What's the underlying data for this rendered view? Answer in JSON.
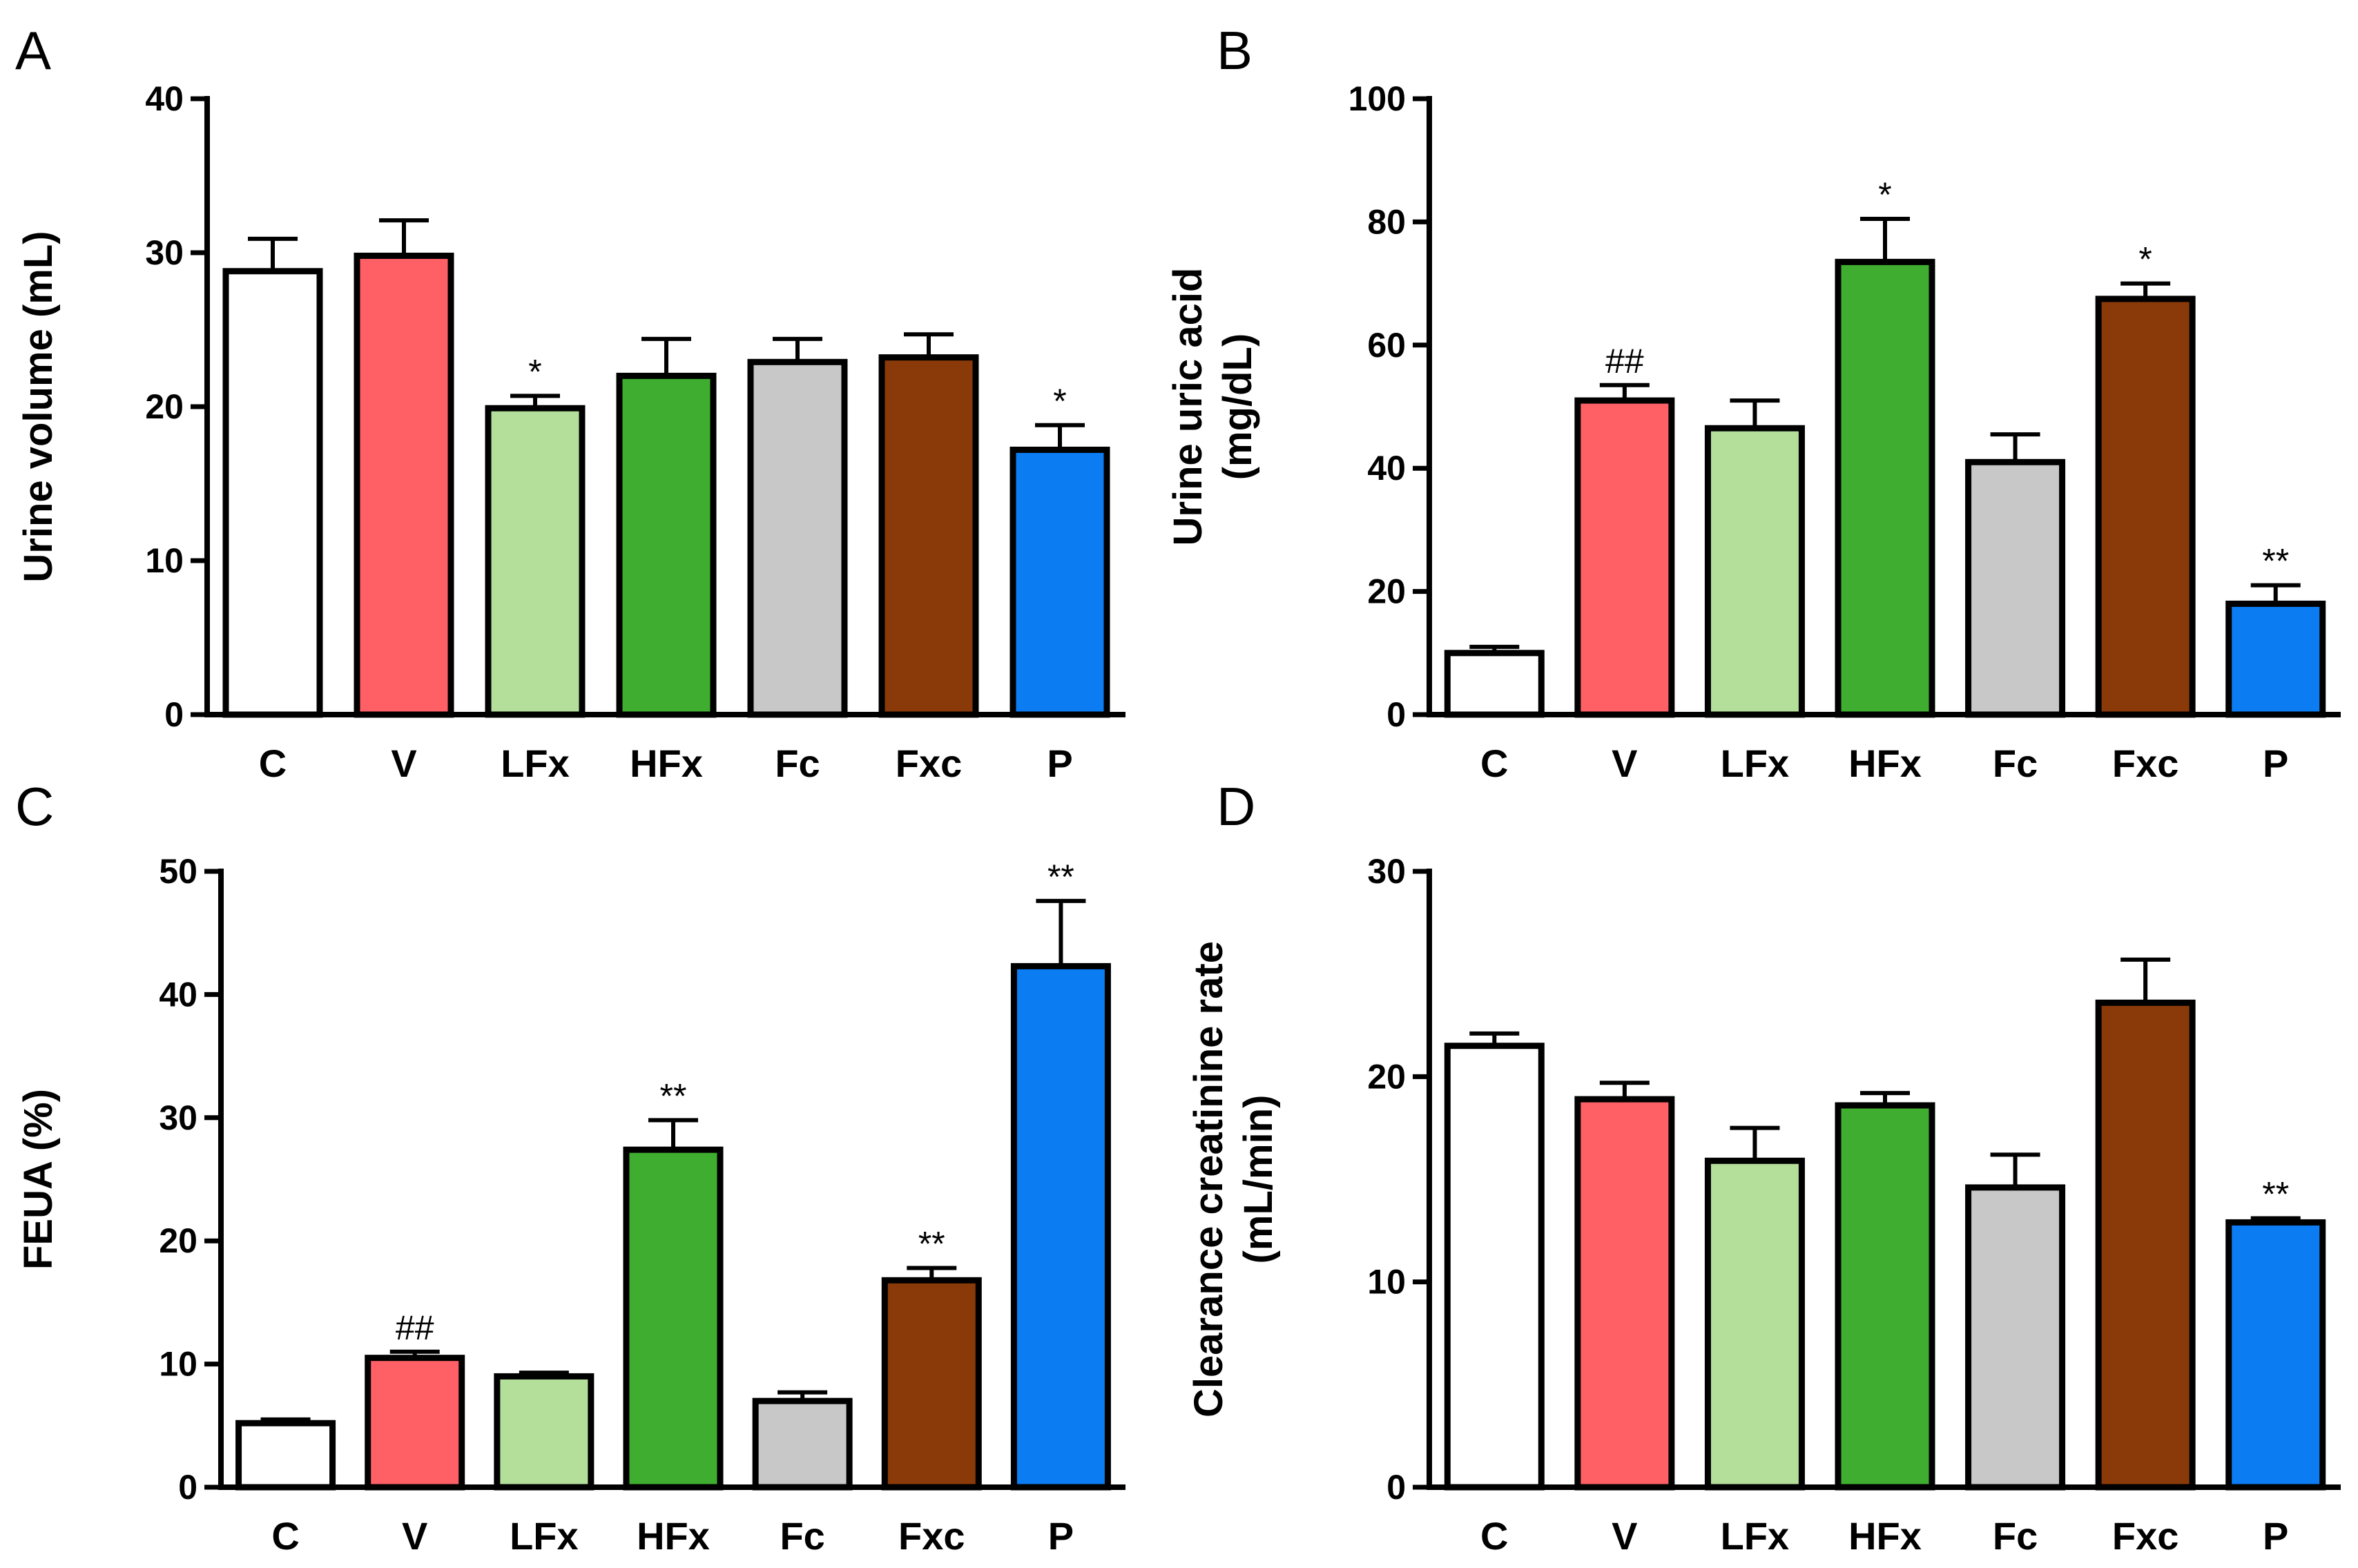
{
  "categories": [
    "C",
    "V",
    "LFx",
    "HFx",
    "Fc",
    "Fxc",
    "P"
  ],
  "colors": [
    "#ffffff",
    "#ff6066",
    "#b4df9b",
    "#3fad2f",
    "#c8c8c8",
    "#8a3a08",
    "#0b7cf2"
  ],
  "chart_data": [
    {
      "panel": "A",
      "type": "bar",
      "ylabel": "Urine volume (mL)",
      "ylim": [
        0,
        40
      ],
      "yticks": [
        0,
        10,
        20,
        30,
        40
      ],
      "categories": [
        "C",
        "V",
        "LFx",
        "HFx",
        "Fc",
        "Fxc",
        "P"
      ],
      "values": [
        28.8,
        29.8,
        19.9,
        22.0,
        22.9,
        23.2,
        17.2
      ],
      "errors": [
        2.1,
        2.3,
        0.8,
        2.4,
        1.5,
        1.5,
        1.6
      ],
      "annotations": [
        "",
        "",
        "*",
        "",
        "",
        "",
        "*"
      ]
    },
    {
      "panel": "B",
      "type": "bar",
      "ylabel": "Urine uric acid (mg/dL)",
      "ylim": [
        0,
        100
      ],
      "yticks": [
        0,
        20,
        40,
        60,
        80,
        100
      ],
      "categories": [
        "C",
        "V",
        "LFx",
        "HFx",
        "Fc",
        "Fxc",
        "P"
      ],
      "values": [
        10.0,
        51.0,
        46.5,
        73.5,
        41.0,
        67.5,
        18.0
      ],
      "errors": [
        1.0,
        2.5,
        4.5,
        7.0,
        4.5,
        2.5,
        3.0
      ],
      "annotations": [
        "",
        "##",
        "",
        "*",
        "",
        "*",
        "**"
      ]
    },
    {
      "panel": "C",
      "type": "bar",
      "ylabel": "FEUA (%)",
      "ylim": [
        0,
        50
      ],
      "yticks": [
        0,
        10,
        20,
        30,
        40,
        50
      ],
      "categories": [
        "C",
        "V",
        "LFx",
        "HFx",
        "Fc",
        "Fxc",
        "P"
      ],
      "values": [
        5.2,
        10.5,
        9.0,
        27.4,
        7.0,
        16.8,
        42.3
      ],
      "errors": [
        0.3,
        0.5,
        0.3,
        2.4,
        0.7,
        1.0,
        5.3
      ],
      "annotations": [
        "",
        "##",
        "",
        "**",
        "",
        "**",
        "**"
      ]
    },
    {
      "panel": "D",
      "type": "bar",
      "ylabel": "Clearance creatinine rate (mL/min)",
      "ylim": [
        0,
        30
      ],
      "yticks": [
        0,
        10,
        20,
        30
      ],
      "categories": [
        "C",
        "V",
        "LFx",
        "HFx",
        "Fc",
        "Fxc",
        "P"
      ],
      "values": [
        21.5,
        18.9,
        15.9,
        18.6,
        14.6,
        23.6,
        12.9
      ],
      "errors": [
        0.6,
        0.8,
        1.6,
        0.6,
        1.6,
        2.1,
        0.2
      ],
      "annotations": [
        "",
        "",
        "",
        "",
        "",
        "",
        "**"
      ]
    }
  ]
}
